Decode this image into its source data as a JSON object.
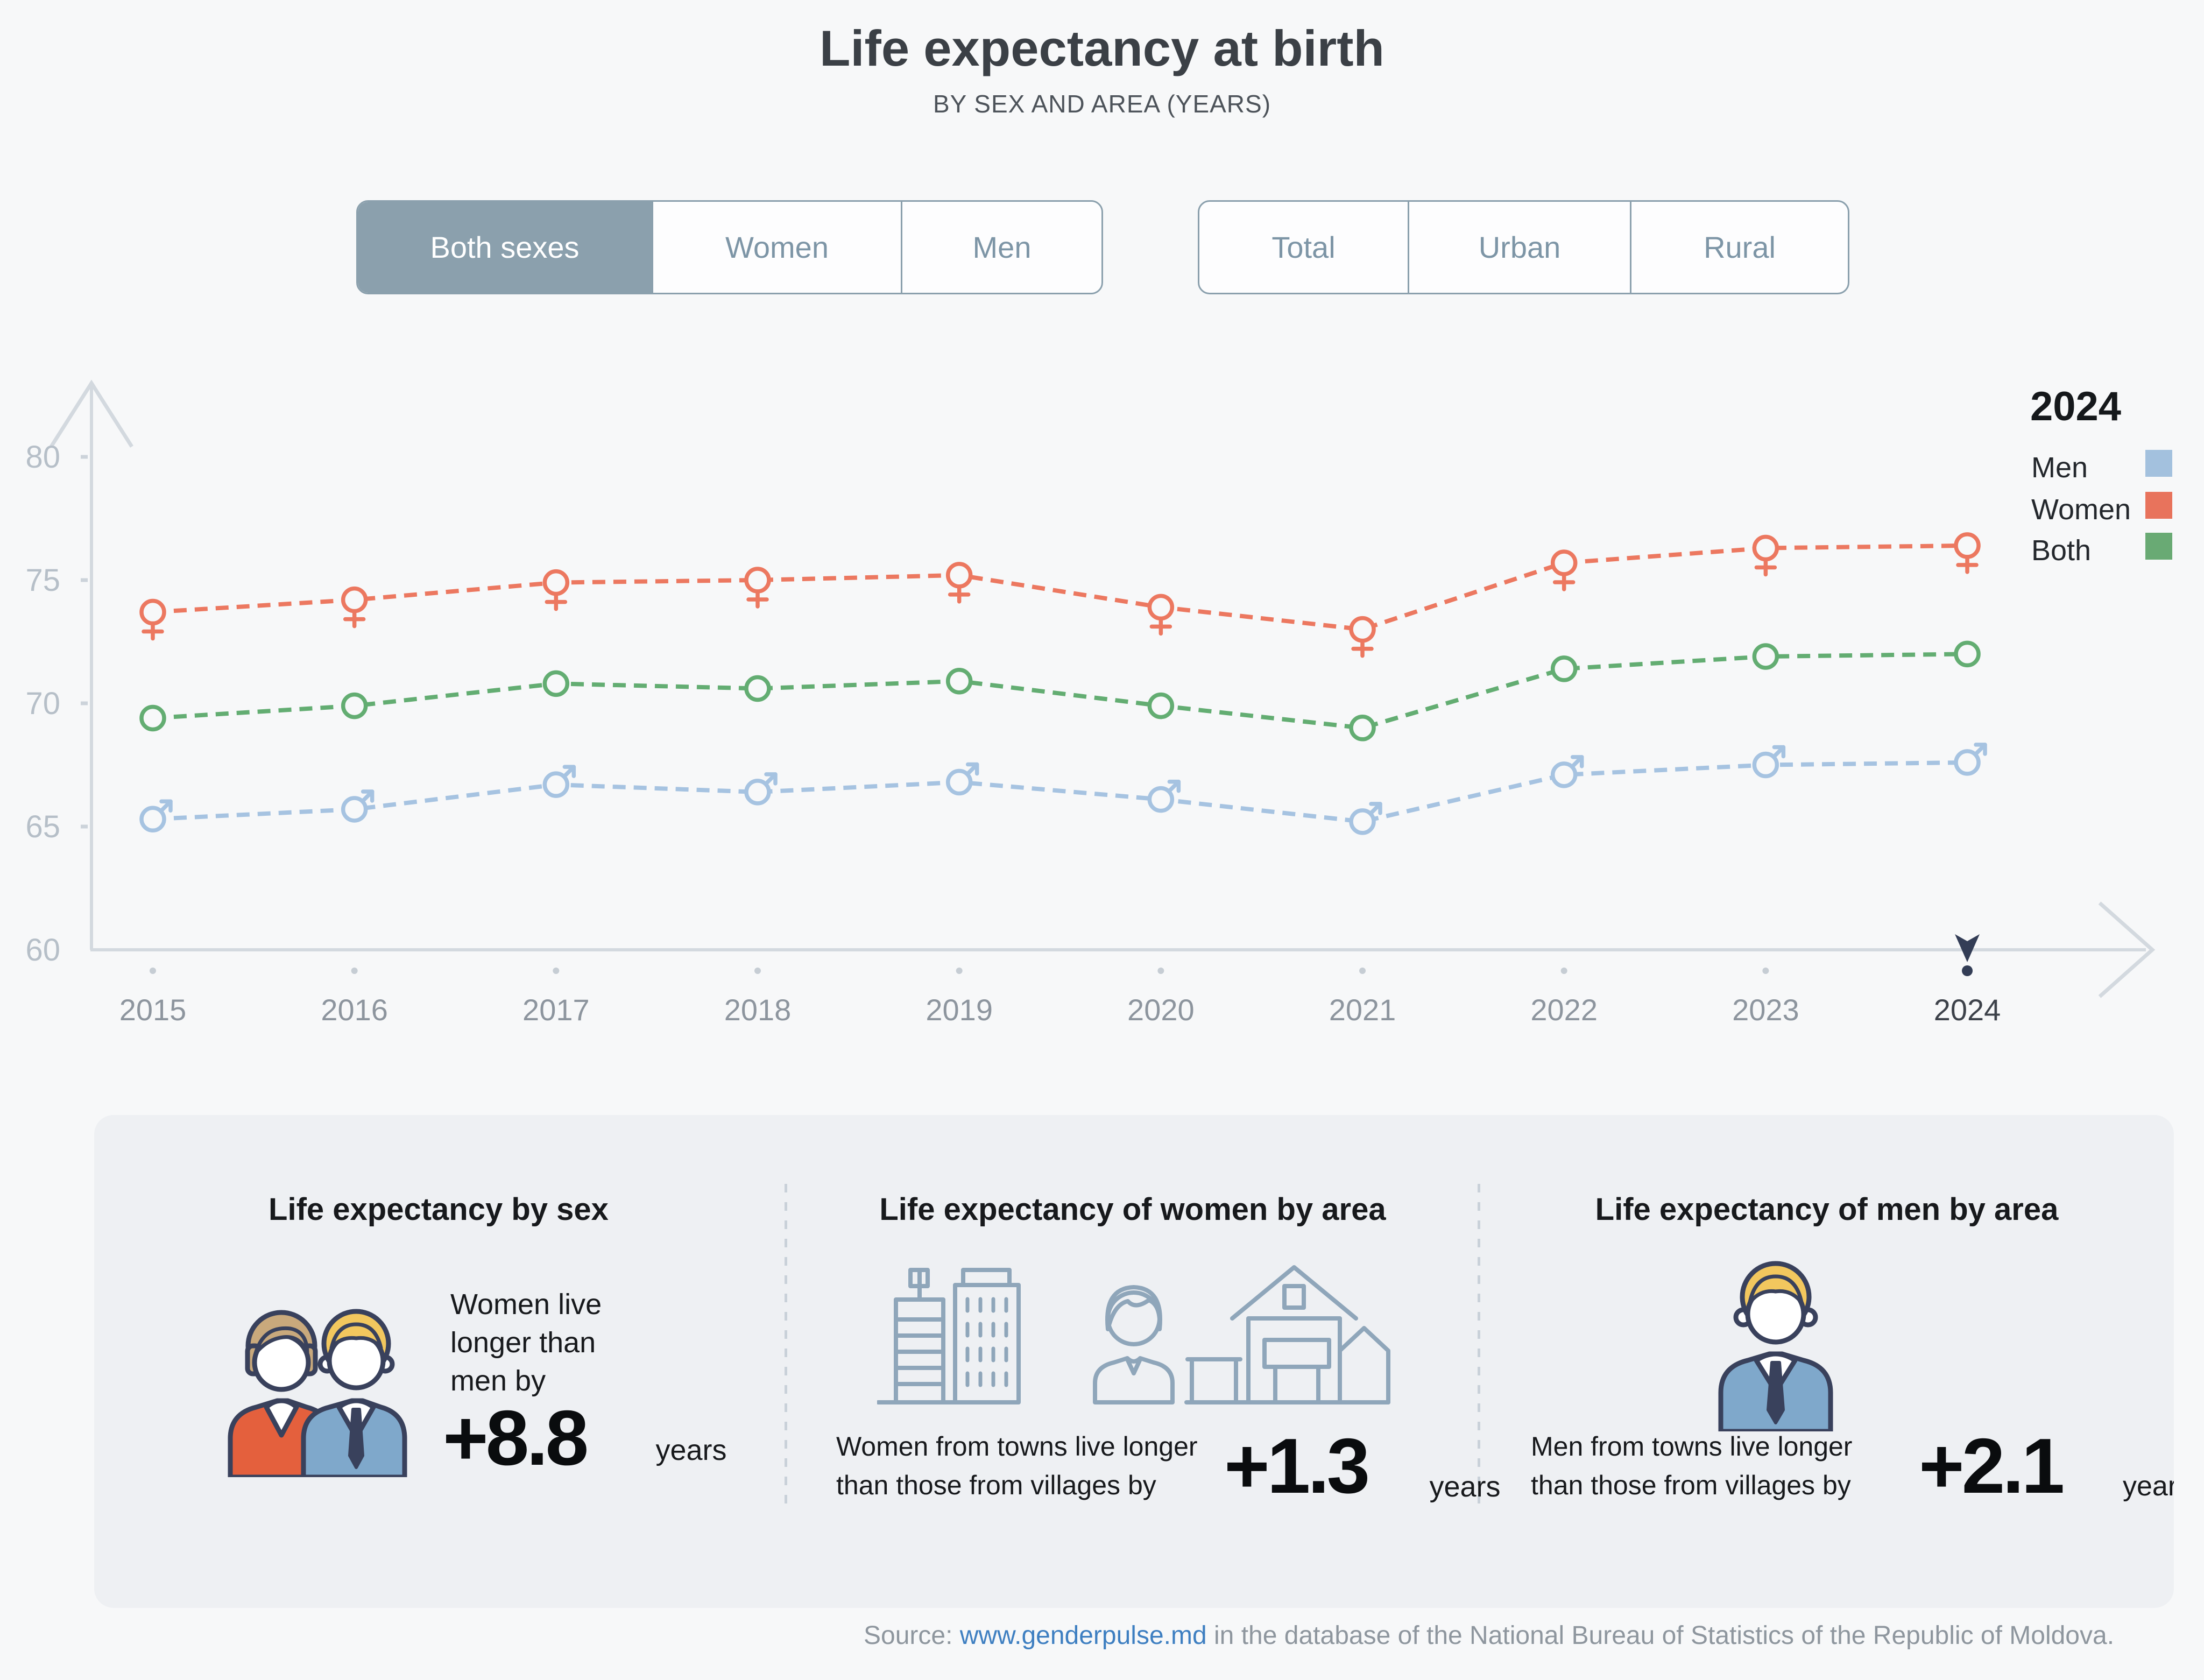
{
  "title": "Life expectancy at birth",
  "subtitle": "BY SEX AND AREA (YEARS)",
  "controls": {
    "sex_tabs": [
      {
        "label": "Both sexes",
        "selected": true
      },
      {
        "label": "Women",
        "selected": false
      },
      {
        "label": "Men",
        "selected": false
      }
    ],
    "area_tabs": [
      {
        "label": "Total",
        "selected": false
      },
      {
        "label": "Urban",
        "selected": false
      },
      {
        "label": "Rural",
        "selected": false
      }
    ]
  },
  "legend": {
    "year": "2024",
    "items": [
      {
        "label": "Men",
        "color": "#a3c1de"
      },
      {
        "label": "Women",
        "color": "#e8735c"
      },
      {
        "label": "Both",
        "color": "#69aa74"
      }
    ]
  },
  "chart_data": {
    "type": "line",
    "title": "Life expectancy at birth by sex and area (years)",
    "x": [
      2015,
      2016,
      2017,
      2018,
      2019,
      2020,
      2021,
      2022,
      2023,
      2024
    ],
    "series": [
      {
        "name": "Men",
        "marker": "male",
        "color": "#a6c3e1",
        "values": [
          65.3,
          65.7,
          66.7,
          66.4,
          66.8,
          66.1,
          65.2,
          67.1,
          67.5,
          67.6
        ]
      },
      {
        "name": "Both",
        "marker": "circle",
        "color": "#63ad72",
        "values": [
          69.4,
          69.9,
          70.8,
          70.6,
          70.9,
          69.9,
          69.0,
          71.4,
          71.9,
          72.0
        ]
      },
      {
        "name": "Women",
        "marker": "female",
        "color": "#ec7860",
        "values": [
          73.7,
          74.2,
          74.9,
          75.0,
          75.2,
          73.9,
          73.0,
          75.7,
          76.3,
          76.4
        ]
      }
    ],
    "ylim": [
      60,
      82
    ],
    "yticks": [
      60,
      65,
      70,
      75,
      80
    ],
    "highlight_year": 2024,
    "grid": false,
    "legend_position": "right"
  },
  "stats": [
    {
      "heading": "Life expectancy by sex",
      "text": "Women live longer than men by",
      "value": "+8.8",
      "unit": "years"
    },
    {
      "heading": "Life expectancy of women by area",
      "text_line1": "Women from towns live longer",
      "text_line2": "than those from villages by",
      "value": "+1.3",
      "unit": "years"
    },
    {
      "heading": "Life expectancy of men by area",
      "text_line1": "Men from towns live longer",
      "text_line2": "than those from villages by",
      "value": "+2.1",
      "unit": "years"
    }
  ],
  "source": {
    "prefix": "Source:",
    "link": "www.genderpulse.md",
    "suffix": "in the database of the National Bureau of Statistics of the Republic of Moldova."
  }
}
